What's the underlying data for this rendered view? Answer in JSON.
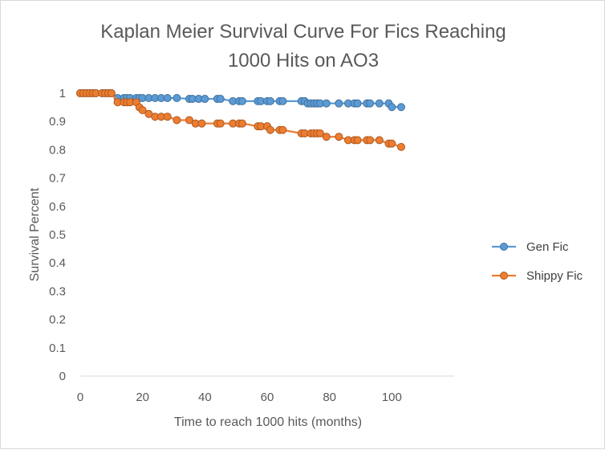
{
  "chart_data": {
    "type": "line",
    "title_lines": [
      "Kaplan Meier Survival Curve For Fics Reaching",
      "1000 Hits on AO3"
    ],
    "xlabel": "Time to reach 1000 hits (months)",
    "ylabel": "Survival Percent",
    "xlim": [
      0,
      120
    ],
    "ylim": [
      0,
      1
    ],
    "x_ticks": [
      "0",
      "20",
      "40",
      "60",
      "80",
      "100"
    ],
    "y_ticks": [
      "0",
      "0.1",
      "0.2",
      "0.3",
      "0.4",
      "0.5",
      "0.6",
      "0.7",
      "0.8",
      "0.9",
      "1"
    ],
    "grid": false,
    "legend_position": "right",
    "series": [
      {
        "name": "Gen Fic",
        "color": "#5b9bd5",
        "marker_edge": "#41719c",
        "points": [
          [
            0,
            1
          ],
          [
            1,
            1
          ],
          [
            2,
            1
          ],
          [
            3,
            1
          ],
          [
            4,
            1
          ],
          [
            5,
            1
          ],
          [
            7,
            1
          ],
          [
            8,
            1
          ],
          [
            9,
            1
          ],
          [
            10,
            1
          ],
          [
            12,
            0.983
          ],
          [
            14,
            0.983
          ],
          [
            15,
            0.983
          ],
          [
            16,
            0.983
          ],
          [
            18,
            0.983
          ],
          [
            19,
            0.983
          ],
          [
            20,
            0.983
          ],
          [
            22,
            0.983
          ],
          [
            24,
            0.983
          ],
          [
            26,
            0.983
          ],
          [
            28,
            0.983
          ],
          [
            31,
            0.983
          ],
          [
            35,
            0.98
          ],
          [
            36,
            0.98
          ],
          [
            38,
            0.98
          ],
          [
            40,
            0.98
          ],
          [
            44,
            0.98
          ],
          [
            45,
            0.98
          ],
          [
            49,
            0.972
          ],
          [
            51,
            0.972
          ],
          [
            52,
            0.972
          ],
          [
            57,
            0.972
          ],
          [
            58,
            0.972
          ],
          [
            60,
            0.972
          ],
          [
            61,
            0.972
          ],
          [
            64,
            0.972
          ],
          [
            65,
            0.972
          ],
          [
            71,
            0.972
          ],
          [
            72,
            0.972
          ],
          [
            73,
            0.964
          ],
          [
            74,
            0.964
          ],
          [
            75,
            0.964
          ],
          [
            76,
            0.964
          ],
          [
            77,
            0.964
          ],
          [
            79,
            0.964
          ],
          [
            83,
            0.964
          ],
          [
            86,
            0.964
          ],
          [
            88,
            0.964
          ],
          [
            89,
            0.964
          ],
          [
            92,
            0.964
          ],
          [
            93,
            0.964
          ],
          [
            96,
            0.964
          ],
          [
            99,
            0.964
          ],
          [
            100,
            0.951
          ],
          [
            103,
            0.951
          ]
        ]
      },
      {
        "name": "Shippy Fic",
        "color": "#ed7d31",
        "marker_edge": "#ae5a21",
        "points": [
          [
            0,
            1
          ],
          [
            1,
            1
          ],
          [
            2,
            1
          ],
          [
            3,
            1
          ],
          [
            4,
            1
          ],
          [
            5,
            1
          ],
          [
            7,
            1
          ],
          [
            8,
            1
          ],
          [
            9,
            1
          ],
          [
            10,
            1
          ],
          [
            12,
            0.968
          ],
          [
            14,
            0.968
          ],
          [
            15,
            0.968
          ],
          [
            16,
            0.968
          ],
          [
            18,
            0.968
          ],
          [
            19,
            0.95
          ],
          [
            20,
            0.94
          ],
          [
            22,
            0.927
          ],
          [
            24,
            0.917
          ],
          [
            26,
            0.917
          ],
          [
            28,
            0.917
          ],
          [
            31,
            0.905
          ],
          [
            35,
            0.905
          ],
          [
            37,
            0.893
          ],
          [
            39,
            0.893
          ],
          [
            44,
            0.893
          ],
          [
            45,
            0.893
          ],
          [
            49,
            0.893
          ],
          [
            51,
            0.893
          ],
          [
            52,
            0.893
          ],
          [
            57,
            0.883
          ],
          [
            58,
            0.883
          ],
          [
            60,
            0.883
          ],
          [
            61,
            0.87
          ],
          [
            64,
            0.87
          ],
          [
            65,
            0.87
          ],
          [
            71,
            0.858
          ],
          [
            72,
            0.858
          ],
          [
            74,
            0.858
          ],
          [
            75,
            0.858
          ],
          [
            76,
            0.858
          ],
          [
            77,
            0.858
          ],
          [
            79,
            0.846
          ],
          [
            83,
            0.846
          ],
          [
            86,
            0.834
          ],
          [
            88,
            0.834
          ],
          [
            89,
            0.834
          ],
          [
            92,
            0.834
          ],
          [
            93,
            0.834
          ],
          [
            96,
            0.834
          ],
          [
            99,
            0.822
          ],
          [
            100,
            0.822
          ],
          [
            103,
            0.81
          ]
        ]
      }
    ]
  }
}
